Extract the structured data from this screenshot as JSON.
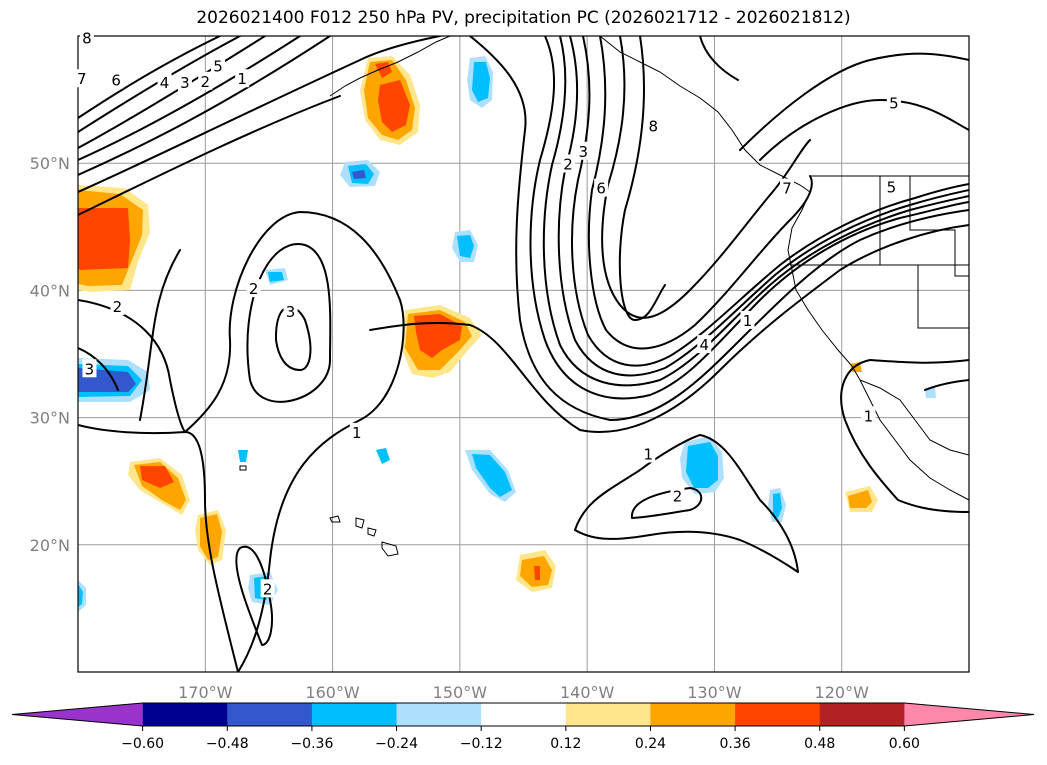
{
  "chart_data": {
    "type": "heatmap",
    "title": "2026021400 F012 250 hPa PV, precipitation PC (2026021712 - 2026021812)",
    "map": {
      "lon_range": [
        -180,
        -110
      ],
      "lat_range": [
        10,
        60
      ],
      "lon_ticks": [
        -170,
        -160,
        -150,
        -140,
        -130,
        -120
      ],
      "lat_ticks": [
        20,
        30,
        40,
        50
      ],
      "lon_tick_labels": [
        "170°W",
        "160°W",
        "150°W",
        "140°W",
        "130°W",
        "120°W"
      ],
      "lat_tick_labels": [
        "20°N",
        "30°N",
        "40°N",
        "50°N"
      ],
      "grid": true
    },
    "colorbar": {
      "levels": [
        -0.6,
        -0.48,
        -0.36,
        -0.24,
        -0.12,
        0.12,
        0.24,
        0.36,
        0.48,
        0.6
      ],
      "tick_labels": [
        "−0.60",
        "−0.48",
        "−0.36",
        "−0.24",
        "−0.12",
        "0.12",
        "0.24",
        "0.36",
        "0.48",
        "0.60"
      ],
      "colors": [
        "#9933cc",
        "#000090",
        "#3358cc",
        "#00bfff",
        "#addfff",
        "#ffffff",
        "#ffe68a",
        "#ffa500",
        "#ff4500",
        "#b22222",
        "#ff88aa"
      ],
      "extend": "both"
    },
    "pv_contour_labels": [
      {
        "text": "8",
        "lon": -179.3,
        "lat": 59.8
      },
      {
        "text": "7",
        "lon": -179.7,
        "lat": 56.6
      },
      {
        "text": "6",
        "lon": -177,
        "lat": 56.5
      },
      {
        "text": "5",
        "lon": -169,
        "lat": 57.6
      },
      {
        "text": "4",
        "lon": -173.2,
        "lat": 56.3
      },
      {
        "text": "3",
        "lon": -171.6,
        "lat": 56.3
      },
      {
        "text": "2",
        "lon": -170,
        "lat": 56.4
      },
      {
        "text": "1",
        "lon": -167.1,
        "lat": 56.6
      },
      {
        "text": "2",
        "lon": -176.9,
        "lat": 38.7
      },
      {
        "text": "3",
        "lon": -179.1,
        "lat": 33.8
      },
      {
        "text": "2",
        "lon": -166.2,
        "lat": 40.1
      },
      {
        "text": "3",
        "lon": -163.3,
        "lat": 38.3
      },
      {
        "text": "1",
        "lon": -158.1,
        "lat": 28.8
      },
      {
        "text": "2",
        "lon": -165.1,
        "lat": 16.5
      },
      {
        "text": "2",
        "lon": -141.5,
        "lat": 49.9
      },
      {
        "text": "3",
        "lon": -140.3,
        "lat": 50.9
      },
      {
        "text": "6",
        "lon": -138.9,
        "lat": 48.0
      },
      {
        "text": "8",
        "lon": -134.8,
        "lat": 52.9
      },
      {
        "text": "7",
        "lon": -124.3,
        "lat": 48.0
      },
      {
        "text": "5",
        "lon": -115.9,
        "lat": 54.7
      },
      {
        "text": "5",
        "lon": -116.1,
        "lat": 48.1
      },
      {
        "text": "4",
        "lon": -130.8,
        "lat": 35.7
      },
      {
        "text": "1",
        "lon": -127.4,
        "lat": 37.6
      },
      {
        "text": "1",
        "lon": -135.2,
        "lat": 27.1
      },
      {
        "text": "2",
        "lon": -132.9,
        "lat": 23.8
      },
      {
        "text": "1",
        "lon": -117.9,
        "lat": 30.1
      }
    ]
  }
}
